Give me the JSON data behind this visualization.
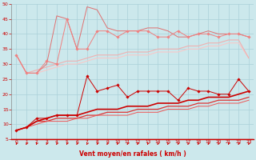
{
  "background_color": "#cce8ec",
  "grid_color": "#aad0d8",
  "xlabel": "Vent moyen/en rafales ( km/h )",
  "xlabel_color": "#cc0000",
  "tick_color": "#cc0000",
  "xlim": [
    -0.5,
    23.5
  ],
  "ylim": [
    5,
    50
  ],
  "yticks": [
    5,
    10,
    15,
    20,
    25,
    30,
    35,
    40,
    45,
    50
  ],
  "xticks": [
    0,
    1,
    2,
    3,
    4,
    5,
    6,
    7,
    8,
    9,
    10,
    11,
    12,
    13,
    14,
    15,
    16,
    17,
    18,
    19,
    20,
    21,
    22,
    23
  ],
  "series": [
    {
      "x": [
        0,
        1,
        2,
        3,
        4,
        5,
        6,
        7,
        8,
        9,
        10,
        11,
        12,
        13,
        14,
        15,
        16,
        17,
        18,
        19,
        20,
        21,
        22,
        23
      ],
      "y": [
        33,
        27,
        27,
        31,
        30,
        45,
        35,
        35,
        41,
        41,
        39,
        41,
        41,
        41,
        39,
        39,
        41,
        39,
        40,
        40,
        39,
        40,
        40,
        39
      ],
      "color": "#f08080",
      "linewidth": 0.7,
      "marker": "D",
      "markersize": 1.8,
      "zorder": 4
    },
    {
      "x": [
        0,
        1,
        2,
        3,
        4,
        5,
        6,
        7,
        8,
        9,
        10,
        11,
        12,
        13,
        14,
        15,
        16,
        17,
        18,
        19,
        20,
        21,
        22,
        23
      ],
      "y": [
        33,
        27,
        27,
        30,
        46,
        45,
        35,
        49,
        48,
        42,
        41,
        41,
        41,
        42,
        42,
        41,
        39,
        39,
        40,
        41,
        40,
        40,
        40,
        39
      ],
      "color": "#e07070",
      "linewidth": 0.7,
      "marker": null,
      "zorder": 3
    },
    {
      "x": [
        0,
        1,
        2,
        3,
        4,
        5,
        6,
        7,
        8,
        9,
        10,
        11,
        12,
        13,
        14,
        15,
        16,
        17,
        18,
        19,
        20,
        21,
        22,
        23
      ],
      "y": [
        33,
        27,
        28,
        29,
        30,
        31,
        31,
        32,
        33,
        33,
        33,
        34,
        34,
        34,
        35,
        35,
        35,
        36,
        36,
        37,
        37,
        38,
        38,
        32
      ],
      "color": "#f0b0b0",
      "linewidth": 0.8,
      "marker": null,
      "zorder": 2
    },
    {
      "x": [
        0,
        1,
        2,
        3,
        4,
        5,
        6,
        7,
        8,
        9,
        10,
        11,
        12,
        13,
        14,
        15,
        16,
        17,
        18,
        19,
        20,
        21,
        22,
        23
      ],
      "y": [
        33,
        27,
        27,
        28,
        29,
        30,
        30,
        31,
        32,
        32,
        32,
        33,
        33,
        33,
        34,
        34,
        34,
        35,
        35,
        36,
        36,
        37,
        37,
        32
      ],
      "color": "#f8c8c8",
      "linewidth": 0.8,
      "marker": null,
      "zorder": 1
    },
    {
      "x": [
        0,
        1,
        2,
        3,
        4,
        5,
        6,
        7,
        8,
        9,
        10,
        11,
        12,
        13,
        14,
        15,
        16,
        17,
        18,
        19,
        20,
        21,
        22,
        23
      ],
      "y": [
        8,
        9,
        12,
        12,
        13,
        13,
        13,
        26,
        21,
        22,
        23,
        19,
        21,
        21,
        21,
        21,
        18,
        22,
        21,
        21,
        20,
        20,
        25,
        21
      ],
      "color": "#cc0000",
      "linewidth": 0.7,
      "marker": "D",
      "markersize": 1.8,
      "zorder": 7
    },
    {
      "x": [
        0,
        1,
        2,
        3,
        4,
        5,
        6,
        7,
        8,
        9,
        10,
        11,
        12,
        13,
        14,
        15,
        16,
        17,
        18,
        19,
        20,
        21,
        22,
        23
      ],
      "y": [
        8,
        9,
        11,
        12,
        13,
        13,
        13,
        14,
        15,
        15,
        15,
        16,
        16,
        16,
        17,
        17,
        17,
        18,
        18,
        19,
        19,
        19,
        20,
        21
      ],
      "color": "#cc0000",
      "linewidth": 1.2,
      "marker": null,
      "zorder": 6
    },
    {
      "x": [
        0,
        1,
        2,
        3,
        4,
        5,
        6,
        7,
        8,
        9,
        10,
        11,
        12,
        13,
        14,
        15,
        16,
        17,
        18,
        19,
        20,
        21,
        22,
        23
      ],
      "y": [
        8,
        9,
        11,
        11,
        12,
        12,
        12,
        13,
        13,
        14,
        14,
        14,
        15,
        15,
        15,
        16,
        16,
        16,
        17,
        17,
        18,
        18,
        18,
        19
      ],
      "color": "#dd3333",
      "linewidth": 0.9,
      "marker": null,
      "zorder": 5
    },
    {
      "x": [
        0,
        1,
        2,
        3,
        4,
        5,
        6,
        7,
        8,
        9,
        10,
        11,
        12,
        13,
        14,
        15,
        16,
        17,
        18,
        19,
        20,
        21,
        22,
        23
      ],
      "y": [
        8,
        9,
        10,
        11,
        11,
        11,
        12,
        12,
        13,
        13,
        13,
        13,
        14,
        14,
        14,
        15,
        15,
        15,
        16,
        16,
        17,
        17,
        17,
        18
      ],
      "color": "#ee5555",
      "linewidth": 0.7,
      "marker": null,
      "zorder": 5
    }
  ],
  "arrow_color": "#cc0000",
  "spine_color": "#888888"
}
